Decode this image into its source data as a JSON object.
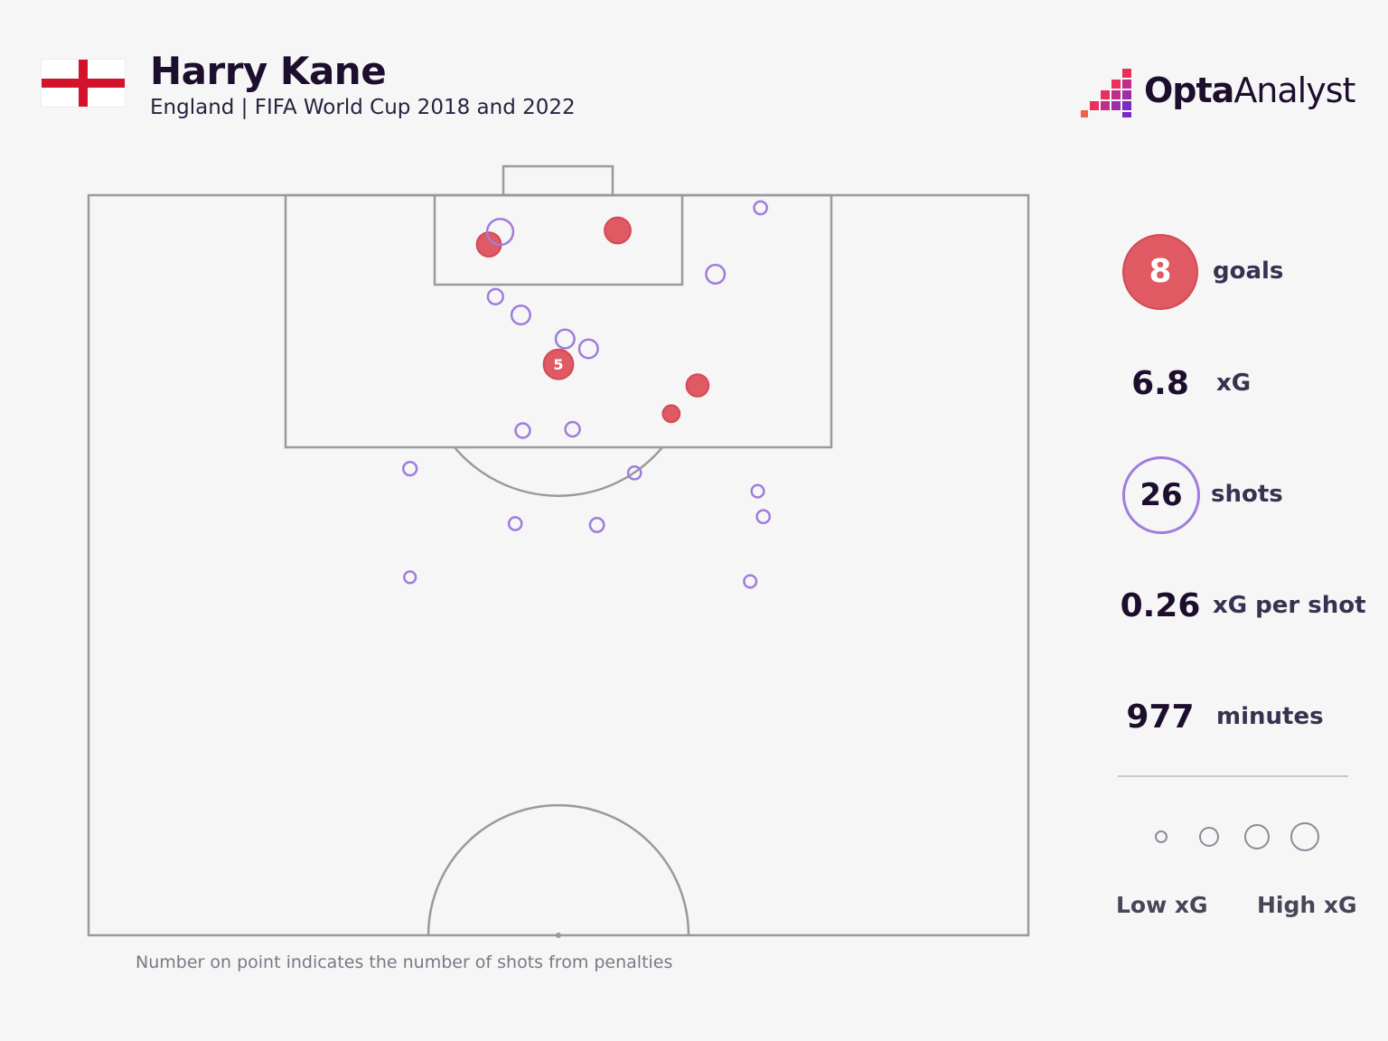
{
  "header": {
    "title": "Harry Kane",
    "subtitle": "England | FIFA World Cup 2018 and 2022",
    "flag": "england-flag",
    "logo_bold": "Opta",
    "logo_light": "Analyst"
  },
  "colors": {
    "background": "#f6f6f6",
    "pitch_line": "#9a9a9a",
    "goal_fill": "#e05a63",
    "goal_stroke": "#d24a55",
    "shot_stroke": "#a07cdc",
    "flag_red": "#d2132b",
    "text_dark": "#1d0e2e"
  },
  "stats": {
    "goals": {
      "value": "8",
      "label": "goals"
    },
    "xg": {
      "value": "6.8",
      "label": "xG"
    },
    "shots": {
      "value": "26",
      "label": "shots"
    },
    "xg_per_shot": {
      "value": "0.26",
      "label": "xG per shot"
    },
    "minutes": {
      "value": "977",
      "label": "minutes"
    }
  },
  "legend": {
    "low_label": "Low xG",
    "high_label": "High xG",
    "sizes": [
      "smallest",
      "small",
      "medium",
      "large"
    ]
  },
  "footnote": "Number on point indicates the number of shots from penalties",
  "chart_data": {
    "type": "scatter",
    "title": "Harry Kane",
    "subtitle": "England | FIFA World Cup 2018 and 2022",
    "coordinate_system": "half-pitch, x = distance across pitch width (0-100, left to right), y = distance from goal line (metres)",
    "xlim": [
      0,
      100
    ],
    "ylim": [
      0,
      52.5
    ],
    "series": [
      {
        "name": "goals",
        "points": [
          {
            "x": 42.6,
            "y": 3.5,
            "xg": 0.45
          },
          {
            "x": 56.3,
            "y": 2.5,
            "xg": 0.55
          },
          {
            "x": 50.0,
            "y": 12.0,
            "xg": 0.79,
            "penalties": 5,
            "label": "5"
          },
          {
            "x": 64.8,
            "y": 13.5,
            "xg": 0.35
          },
          {
            "x": 62.0,
            "y": 15.5,
            "xg": 0.15
          }
        ]
      },
      {
        "name": "shots",
        "points": [
          {
            "x": 43.8,
            "y": 2.6,
            "xg": 0.55
          },
          {
            "x": 71.5,
            "y": 0.9,
            "xg": 0.05
          },
          {
            "x": 66.7,
            "y": 5.6,
            "xg": 0.2
          },
          {
            "x": 43.3,
            "y": 7.2,
            "xg": 0.1
          },
          {
            "x": 46.0,
            "y": 8.5,
            "xg": 0.2
          },
          {
            "x": 50.7,
            "y": 10.2,
            "xg": 0.2
          },
          {
            "x": 53.2,
            "y": 10.9,
            "xg": 0.2
          },
          {
            "x": 46.2,
            "y": 16.7,
            "xg": 0.08
          },
          {
            "x": 51.5,
            "y": 16.6,
            "xg": 0.08
          },
          {
            "x": 34.2,
            "y": 19.4,
            "xg": 0.06
          },
          {
            "x": 58.1,
            "y": 19.7,
            "xg": 0.05
          },
          {
            "x": 71.2,
            "y": 21.0,
            "xg": 0.04
          },
          {
            "x": 45.4,
            "y": 23.3,
            "xg": 0.05
          },
          {
            "x": 54.1,
            "y": 23.4,
            "xg": 0.07
          },
          {
            "x": 71.8,
            "y": 22.8,
            "xg": 0.05
          },
          {
            "x": 34.2,
            "y": 27.1,
            "xg": 0.03
          },
          {
            "x": 70.4,
            "y": 27.4,
            "xg": 0.04
          }
        ]
      }
    ],
    "annotations": [
      "Number on point indicates the number of shots from penalties"
    ],
    "legend": [
      "Low xG",
      "High xG"
    ]
  }
}
